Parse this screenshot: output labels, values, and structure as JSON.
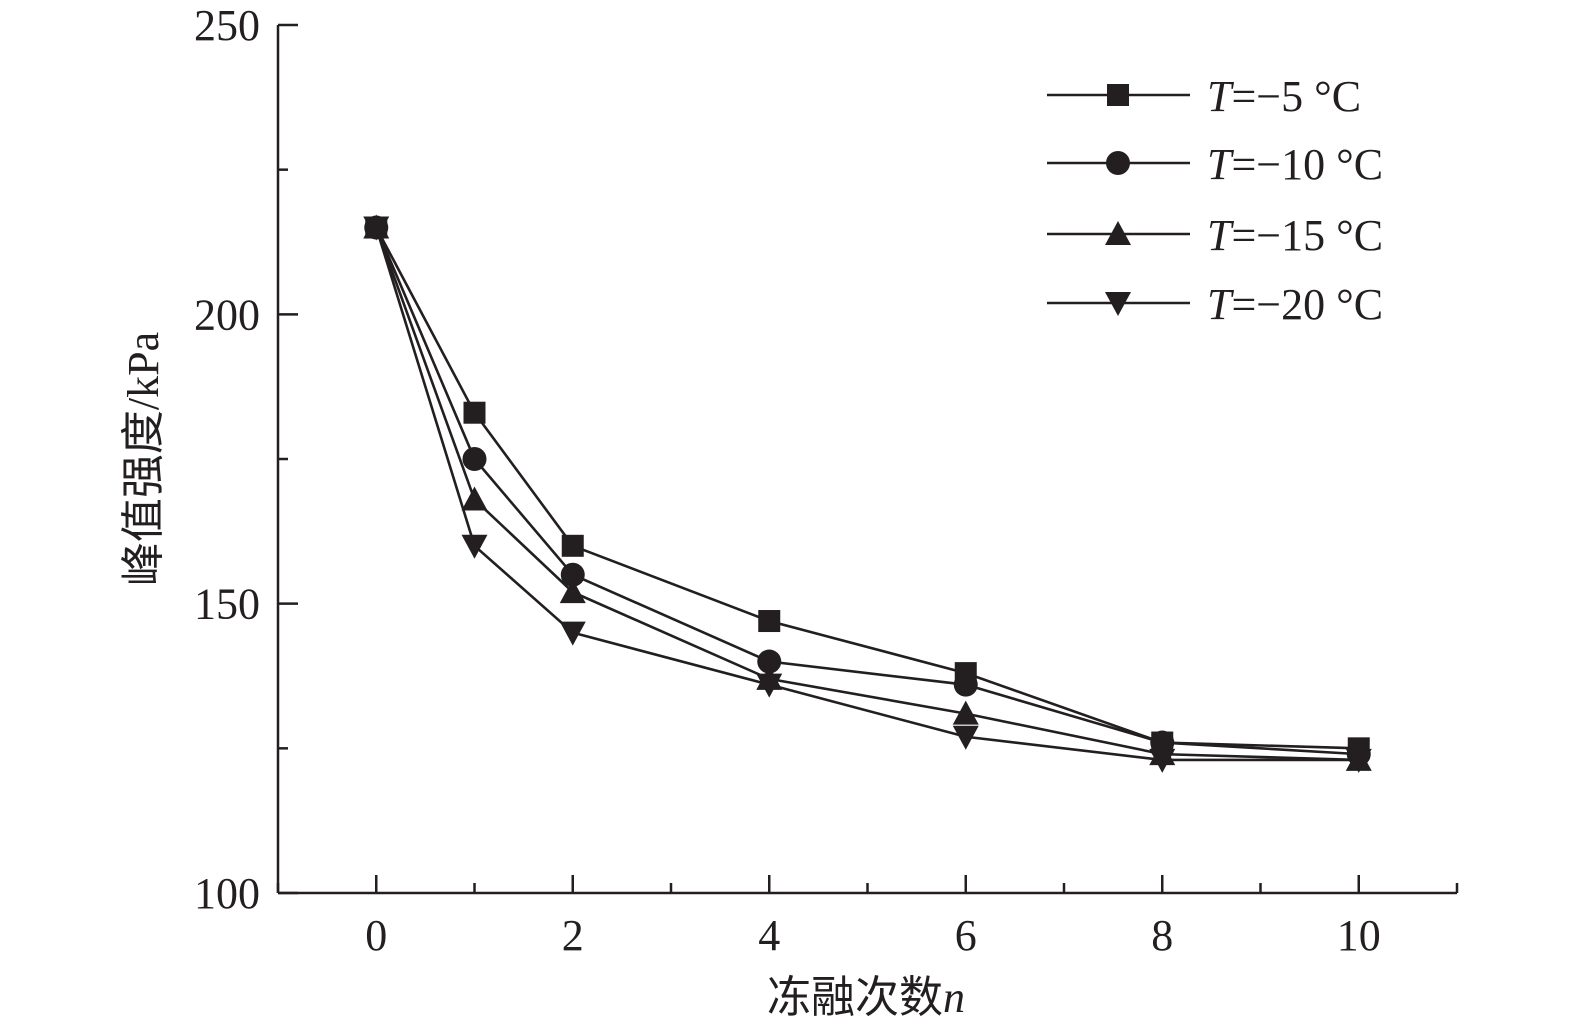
{
  "chart_data": {
    "type": "line",
    "title": "",
    "xlabel": "冻融次数",
    "xlabel_var": "n",
    "ylabel": "峰值强度/kPa",
    "xlim": [
      -1,
      11
    ],
    "ylim": [
      100,
      250
    ],
    "x_ticks": [
      0,
      2,
      4,
      6,
      8,
      10
    ],
    "x_minor_ticks": [
      -1,
      1,
      3,
      5,
      7,
      9,
      11
    ],
    "y_ticks": [
      100,
      150,
      200,
      250
    ],
    "y_minor_ticks": [
      125,
      175,
      225
    ],
    "grid": false,
    "legend_position": "top-right",
    "x": [
      0,
      1,
      2,
      4,
      6,
      8,
      10
    ],
    "series": [
      {
        "name_var": "T",
        "name_rest": "=−5 °C",
        "marker": "square",
        "values": [
          215,
          183,
          160,
          147,
          138,
          126,
          125
        ]
      },
      {
        "name_var": "T",
        "name_rest": "=−10 °C",
        "marker": "circle",
        "values": [
          215,
          175,
          155,
          140,
          136,
          126,
          124
        ]
      },
      {
        "name_var": "T",
        "name_rest": "=−15 °C",
        "marker": "triangle-up",
        "values": [
          215,
          168,
          152,
          137,
          131,
          124,
          123
        ]
      },
      {
        "name_var": "T",
        "name_rest": "=−20 °C",
        "marker": "triangle-down",
        "values": [
          215,
          160,
          145,
          136,
          127,
          123,
          123
        ]
      }
    ],
    "colors": {
      "ink": "#231f20"
    }
  }
}
